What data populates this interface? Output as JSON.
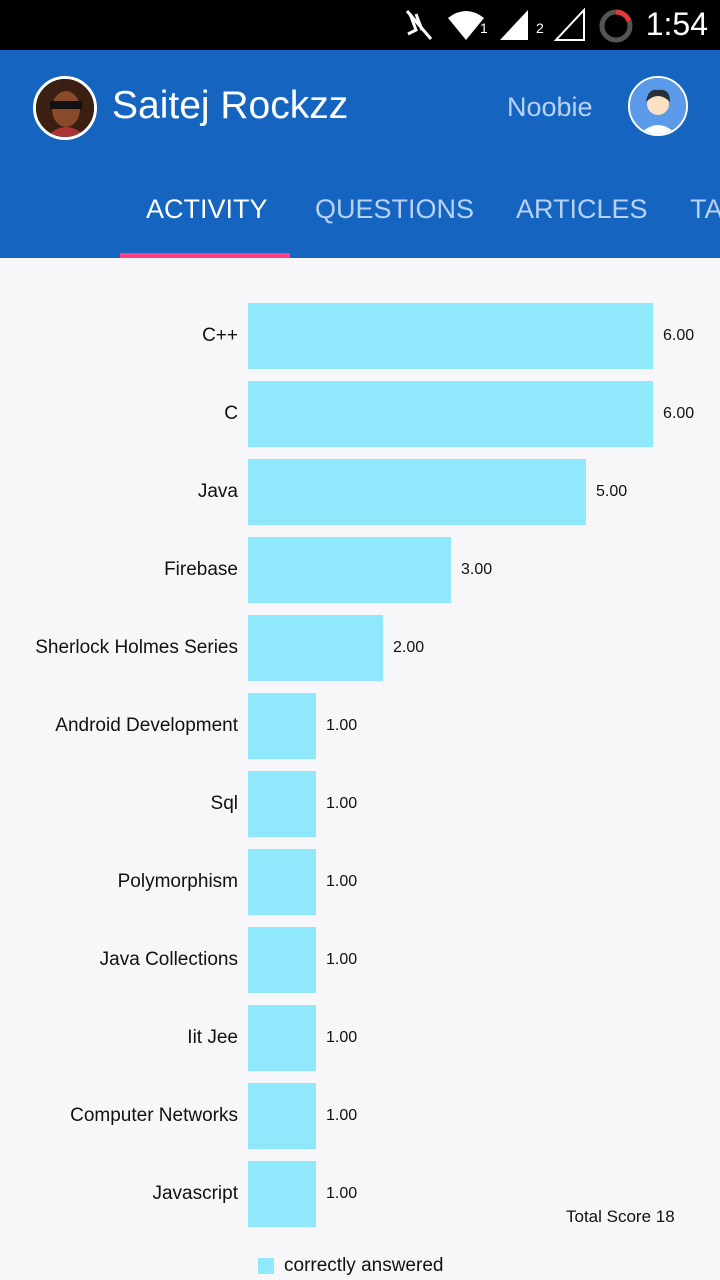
{
  "status_bar": {
    "time": "1:54",
    "icons": [
      "mute-icon",
      "wifi-icon",
      "signal-1-icon",
      "signal-2-icon",
      "battery-icon"
    ],
    "wifi_sub": "1",
    "sim_sub": "2"
  },
  "header": {
    "user_name": "Saitej Rockzz",
    "rank": "Noobie",
    "bg_color": "#1565c0"
  },
  "tabs": [
    {
      "label": "ACTIVITY",
      "active": true
    },
    {
      "label": "QUESTIONS",
      "active": false
    },
    {
      "label": "ARTICLES",
      "active": false
    },
    {
      "label": "TA",
      "active": false
    }
  ],
  "chart_data": {
    "type": "bar",
    "orientation": "horizontal",
    "categories": [
      "C++",
      "C",
      "Java",
      "Firebase",
      "Sherlock Holmes Series",
      "Android Development",
      "Sql",
      "Polymorphism",
      "Java Collections",
      "Iit Jee",
      "Computer Networks",
      "Javascript"
    ],
    "series": [
      {
        "name": "correctly answered",
        "values": [
          6,
          6,
          5,
          3,
          2,
          1,
          1,
          1,
          1,
          1,
          1,
          1
        ],
        "color": "#8fe8fc"
      }
    ],
    "value_labels": [
      "6.00",
      "6.00",
      "5.00",
      "3.00",
      "2.00",
      "1.00",
      "1.00",
      "1.00",
      "1.00",
      "1.00",
      "1.00",
      "1.00"
    ],
    "xlim": [
      0,
      6
    ],
    "grid": false,
    "legend": "bottom-left"
  },
  "total_score": "Total Score 18",
  "legend_label": "correctly answered"
}
